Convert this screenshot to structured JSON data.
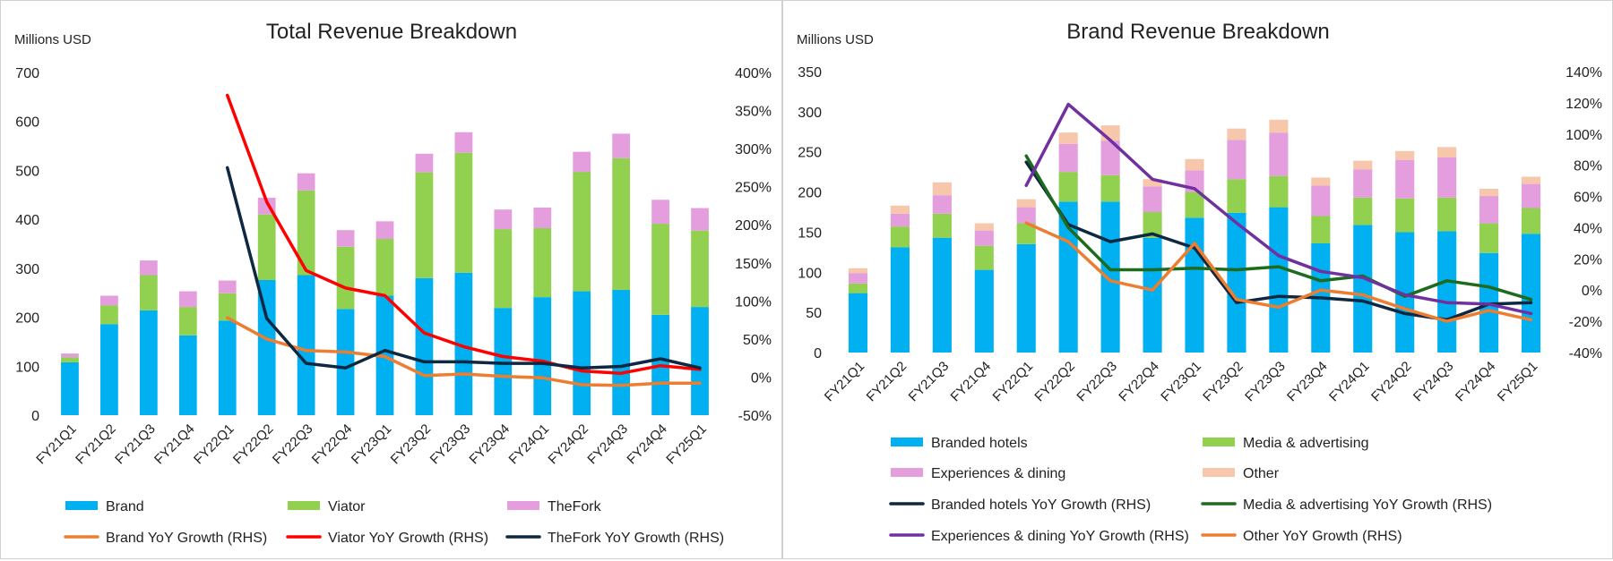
{
  "chart_data": [
    {
      "type": "bar",
      "title": "Total Revenue Breakdown",
      "ylabel": "Millions USD",
      "ylim": [
        0,
        700
      ],
      "yticks": [
        "0",
        "100",
        "200",
        "300",
        "400",
        "500",
        "600",
        "700"
      ],
      "y2lim": [
        -50,
        400
      ],
      "y2ticks": [
        "-50%",
        "0%",
        "50%",
        "100%",
        "150%",
        "200%",
        "250%",
        "300%",
        "350%",
        "400%"
      ],
      "categories": [
        "FY21Q1",
        "FY21Q2",
        "FY21Q3",
        "FY21Q4",
        "FY22Q1",
        "FY22Q2",
        "FY22Q3",
        "FY22Q4",
        "FY23Q1",
        "FY23Q2",
        "FY23Q3",
        "FY23Q4",
        "FY24Q1",
        "FY24Q2",
        "FY24Q3",
        "FY24Q4",
        "FY25Q1"
      ],
      "stacked": true,
      "series": [
        {
          "name": "Brand",
          "color": "#00b0f0",
          "values": [
            108,
            186,
            214,
            163,
            193,
            276,
            286,
            217,
            244,
            280,
            291,
            219,
            241,
            253,
            256,
            205,
            221
          ]
        },
        {
          "name": "Viator",
          "color": "#92d050",
          "values": [
            10,
            38,
            72,
            58,
            56,
            134,
            173,
            127,
            116,
            216,
            245,
            161,
            141,
            244,
            269,
            186,
            156
          ]
        },
        {
          "name": "TheFork",
          "color": "#e49edd",
          "values": [
            8,
            20,
            30,
            32,
            26,
            34,
            35,
            34,
            36,
            38,
            42,
            40,
            42,
            41,
            50,
            49,
            46
          ]
        }
      ],
      "line_series": [
        {
          "name": "Brand YoY Growth (RHS)",
          "color": "#ed7d31",
          "axis": "right",
          "values": [
            null,
            null,
            null,
            null,
            78,
            50,
            35,
            33,
            27,
            2,
            4,
            1,
            -1,
            -10,
            -11,
            -8,
            -8
          ]
        },
        {
          "name": "Viator YoY Growth (RHS)",
          "color": "#ff0000",
          "axis": "right",
          "values": [
            null,
            null,
            null,
            null,
            370,
            230,
            140,
            117,
            107,
            58,
            40,
            27,
            21,
            8,
            5,
            15,
            10
          ]
        },
        {
          "name": "TheFork YoY Growth (RHS)",
          "color": "#0e2841",
          "axis": "right",
          "values": [
            null,
            null,
            null,
            null,
            275,
            77,
            18,
            12,
            35,
            20,
            20,
            18,
            18,
            12,
            14,
            24,
            12
          ]
        }
      ],
      "legend": "bottom",
      "legend_order": [
        "Brand",
        "Viator",
        "TheFork",
        "Brand YoY Growth (RHS)",
        "Viator YoY Growth (RHS)",
        "TheFork YoY Growth (RHS)"
      ]
    },
    {
      "type": "bar",
      "title": "Brand Revenue Breakdown",
      "ylabel": "Millions USD",
      "ylim": [
        0,
        350
      ],
      "yticks": [
        "0",
        "50",
        "100",
        "150",
        "200",
        "250",
        "300",
        "350"
      ],
      "y2lim": [
        -40,
        140
      ],
      "y2ticks": [
        "-40%",
        "-20%",
        "0%",
        "20%",
        "40%",
        "60%",
        "80%",
        "100%",
        "120%",
        "140%"
      ],
      "categories": [
        "FY21Q1",
        "FY21Q2",
        "FY21Q3",
        "FY21Q4",
        "FY22Q1",
        "FY22Q2",
        "FY22Q3",
        "FY22Q4",
        "FY23Q1",
        "FY23Q2",
        "FY23Q3",
        "FY23Q4",
        "FY24Q1",
        "FY24Q2",
        "FY24Q3",
        "FY24Q4",
        "FY25Q1"
      ],
      "stacked": true,
      "series": [
        {
          "name": "Branded hotels",
          "color": "#00b0f0",
          "values": [
            74,
            131,
            143,
            103,
            135,
            188,
            188,
            143,
            168,
            174,
            181,
            136,
            159,
            150,
            151,
            124,
            148
          ]
        },
        {
          "name": "Media & advertising",
          "color": "#92d050",
          "values": [
            12,
            26,
            30,
            30,
            26,
            37,
            33,
            32,
            32,
            42,
            39,
            34,
            34,
            42,
            42,
            37,
            32
          ]
        },
        {
          "name": "Experiences & dining",
          "color": "#e49edd",
          "values": [
            13,
            16,
            23,
            19,
            20,
            35,
            43,
            32,
            27,
            49,
            54,
            38,
            35,
            48,
            50,
            34,
            30
          ]
        },
        {
          "name": "Other",
          "color": "#f7c7ac",
          "values": [
            6,
            10,
            16,
            9,
            10,
            14,
            19,
            9,
            14,
            14,
            16,
            10,
            11,
            11,
            13,
            9,
            9
          ]
        }
      ],
      "line_series": [
        {
          "name": "Branded hotels YoY Growth (RHS)",
          "color": "#0e2841",
          "axis": "right",
          "values": [
            null,
            null,
            null,
            null,
            82,
            42,
            31,
            36,
            27,
            -8,
            -4,
            -5,
            -7,
            -15,
            -19,
            -9,
            -8
          ]
        },
        {
          "name": "Media & advertising YoY Growth (RHS)",
          "color": "#1e6b1e",
          "axis": "right",
          "values": [
            null,
            null,
            null,
            null,
            86,
            40,
            13,
            13,
            14,
            13,
            15,
            6,
            9,
            -4,
            6,
            2,
            -6
          ]
        },
        {
          "name": "Experiences & dining YoY Growth (RHS)",
          "color": "#7030a0",
          "axis": "right",
          "values": [
            null,
            null,
            null,
            null,
            67,
            119,
            96,
            71,
            65,
            43,
            22,
            12,
            8,
            -3,
            -8,
            -9,
            -15
          ]
        },
        {
          "name": "Other YoY Growth (RHS)",
          "color": "#ed7d31",
          "axis": "right",
          "values": [
            null,
            null,
            null,
            null,
            43,
            31,
            6,
            0,
            30,
            -6,
            -11,
            0,
            -3,
            -12,
            -20,
            -13,
            -19
          ]
        }
      ],
      "legend": "bottom",
      "legend_order": [
        "Branded hotels",
        "Media & advertising",
        "Experiences & dining",
        "Other",
        "Branded hotels YoY Growth (RHS)",
        "Media & advertising YoY Growth (RHS)",
        "Experiences & dining YoY Growth (RHS)",
        "Other YoY Growth (RHS)"
      ]
    }
  ]
}
